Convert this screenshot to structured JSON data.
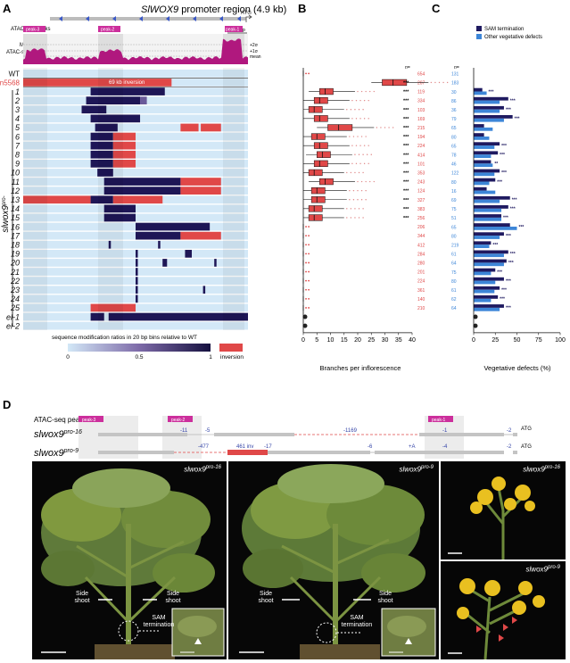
{
  "panel_labels": {
    "A": "A",
    "B": "B",
    "C": "C",
    "D": "D"
  },
  "panel_a": {
    "title_gene": "SlWOX9",
    "title_rest": " promoter region (4.9 kb)",
    "atg": "ATG",
    "scale": "500 bp",
    "track_peaks": "ATAC-seq peaks",
    "track_meristem": "Meristem",
    "track_coverage": "ATAC-seq coverage",
    "sig2": "+2σ",
    "sig1": "+1σ",
    "mean": "mean",
    "peaks": [
      "peak-3",
      "peak-2",
      "peak-1"
    ],
    "inversion_text": "69 kb inversion",
    "wt": "WT",
    "s_allele": "s-n5568",
    "genotype": "slwox9",
    "alleles": [
      "1",
      "2",
      "3",
      "4",
      "5",
      "6",
      "7",
      "8",
      "9",
      "10",
      "11",
      "12",
      "13",
      "14",
      "15",
      "16",
      "17",
      "18",
      "19",
      "20",
      "21",
      "22",
      "23",
      "24",
      "25"
    ],
    "el": [
      "el-1",
      "el-2"
    ],
    "legend_title": "sequence modification ratios in 20 bp bins relative to WT",
    "legend_ticks": [
      "0",
      "0.5",
      "1"
    ],
    "legend_inversion": "inversion"
  },
  "chart_data": [
    {
      "type": "box",
      "panel": "B",
      "xlabel": "Branches per inflorescence",
      "xlim": [
        0,
        40
      ],
      "xticks": [
        "0",
        "5",
        "10",
        "15",
        "20",
        "25",
        "30",
        "35",
        "40"
      ],
      "n_header": "n=",
      "rows": [
        "WT",
        "s-n5568",
        "1",
        "2",
        "3",
        "4",
        "5",
        "6",
        "7",
        "8",
        "9",
        "10",
        "11",
        "12",
        "13",
        "14",
        "15",
        "16",
        "17",
        "18",
        "19",
        "20",
        "21",
        "22",
        "23",
        "24",
        "25",
        "el-1",
        "el-2"
      ],
      "n": [
        "654",
        "207",
        "119",
        "334",
        "103",
        "169",
        "215",
        "194",
        "224",
        "414",
        "101",
        "353",
        "243",
        "124",
        "327",
        "383",
        "256",
        "206",
        "344",
        "412",
        "284",
        "280",
        "201",
        "224",
        "361",
        "140",
        "210",
        "",
        ""
      ],
      "medians": [
        1,
        33,
        8,
        6,
        4,
        6,
        13,
        5,
        6,
        7,
        6,
        4,
        8,
        5,
        5,
        4,
        4,
        1,
        1,
        1,
        1,
        1,
        1,
        1,
        1,
        1,
        1,
        null,
        null
      ],
      "sig": [
        "",
        "***",
        "***",
        "***",
        "***",
        "***",
        "***",
        "***",
        "***",
        "***",
        "***",
        "***",
        "***",
        "***",
        "***",
        "***",
        "***",
        "",
        "",
        "",
        "",
        "",
        "",
        "",
        "",
        "",
        "",
        "",
        ""
      ]
    },
    {
      "type": "bar",
      "panel": "C",
      "xlabel": "Vegetative defects (%)",
      "xlim": [
        0,
        100
      ],
      "xticks": [
        "0",
        "25",
        "50",
        "75",
        "100"
      ],
      "n_header": "n=",
      "legend": [
        "SAM termination",
        "Other vegetative defects"
      ],
      "rows": [
        "WT",
        "s-n5568",
        "1",
        "2",
        "3",
        "4",
        "5",
        "6",
        "7",
        "8",
        "9",
        "10",
        "11",
        "12",
        "13",
        "14",
        "15",
        "16",
        "17",
        "18",
        "19",
        "20",
        "21",
        "22",
        "23",
        "24",
        "25",
        "el-1",
        "el-2"
      ],
      "n": [
        "131",
        "183",
        "30",
        "86",
        "36",
        "79",
        "65",
        "80",
        "65",
        "78",
        "46",
        "122",
        "80",
        "16",
        "69",
        "75",
        "51",
        "65",
        "80",
        "219",
        "61",
        "64",
        "75",
        "80",
        "61",
        "62",
        "64",
        "",
        ""
      ],
      "sam_termination": [
        0,
        0,
        10,
        40,
        35,
        45,
        12,
        12,
        30,
        28,
        20,
        30,
        25,
        15,
        42,
        40,
        32,
        42,
        35,
        20,
        40,
        38,
        25,
        35,
        30,
        28,
        35,
        null,
        null
      ],
      "other_defects": [
        0,
        0,
        15,
        30,
        30,
        35,
        22,
        18,
        24,
        20,
        22,
        24,
        18,
        25,
        30,
        32,
        32,
        50,
        30,
        18,
        35,
        35,
        20,
        25,
        24,
        20,
        30,
        null,
        null
      ],
      "sig": [
        "",
        "",
        "***",
        "***",
        "***",
        "***",
        "",
        "",
        "***",
        "***",
        "**",
        "***",
        "***",
        "",
        "***",
        "***",
        "***",
        "***",
        "***",
        "***",
        "***",
        "***",
        "***",
        "***",
        "***",
        "***",
        "***",
        "",
        ""
      ]
    }
  ],
  "panel_d": {
    "track_peaks": "ATAC-seq peaks",
    "peaks": [
      "peak-3",
      "peak-2",
      "peak-1"
    ],
    "geno16_base": "slwox9",
    "geno16_sup": "pro-16",
    "geno9_base": "slwox9",
    "geno9_sup": "pro-9",
    "row16_labels": [
      "-11",
      "-5",
      "-1169",
      "-1",
      "-2",
      "ATG"
    ],
    "row9_labels": [
      "-477",
      "461 inv",
      "-17",
      "-6",
      "+A",
      "-4",
      "-2",
      "ATG"
    ],
    "side_shoot": "Side shoot",
    "sam_termination": "SAM termination",
    "photo1_label": "slwox9",
    "photo1_sup": "pro-16",
    "photo2_label": "slwox9",
    "photo2_sup": "pro-9",
    "photo3_label": "slwox9",
    "photo3_sup": "pro-16",
    "photo4_label": "slwox9",
    "photo4_sup": "pro-9"
  },
  "colors": {
    "magenta": "#cc2f9c",
    "red": "#e04848",
    "navy": "#1f1a60",
    "blue": "#3d86d8",
    "pale": "#d3e8f7"
  }
}
